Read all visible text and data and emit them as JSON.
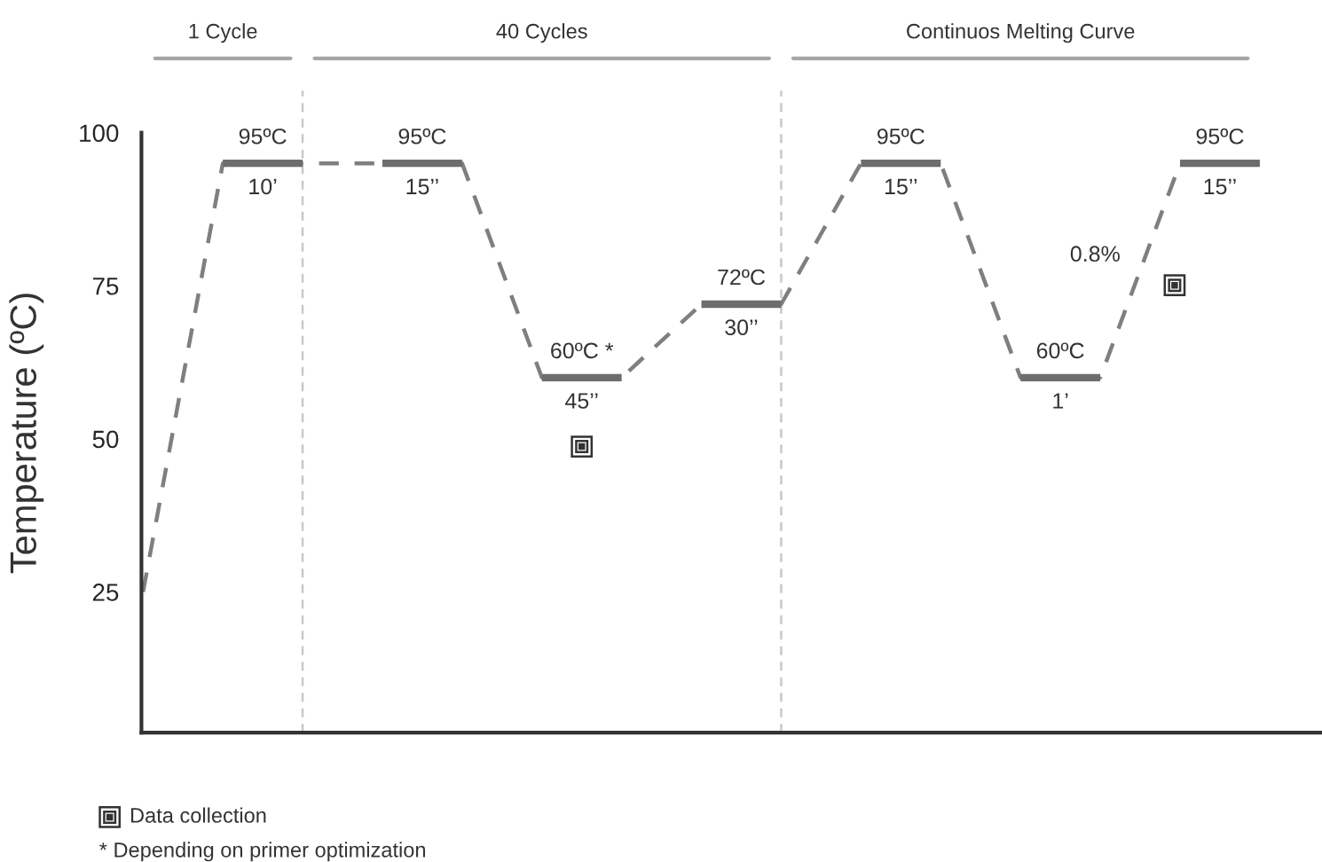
{
  "chart_data": {
    "type": "line",
    "ylabel": "Temperature (ºC)",
    "categories": [
      null,
      null,
      null,
      null,
      null,
      null,
      null,
      null,
      null,
      null,
      null,
      null,
      null,
      null,
      null
    ],
    "ylim": [
      2,
      100
    ],
    "yticks": [
      25,
      50,
      75,
      100
    ],
    "grid": false,
    "legend": false,
    "marker": "none",
    "tick_labels": "y",
    "series": [
      {
        "color": "#7f7f7f",
        "line_style": "dashed",
        "values": [
          25,
          95,
          95,
          95,
          95,
          60,
          60,
          72,
          72,
          95,
          95,
          60,
          60,
          95,
          95
        ]
      },
      {
        "color": "#6d6d6d",
        "line_style": "solid",
        "values": [
          null,
          95,
          95,
          null,
          null,
          null,
          null,
          null,
          null,
          null,
          null,
          null,
          null,
          null,
          null
        ]
      },
      {
        "color": "#6d6d6d",
        "line_style": "solid",
        "values": [
          null,
          null,
          null,
          95,
          95,
          null,
          null,
          null,
          null,
          null,
          null,
          null,
          null,
          null,
          null
        ]
      },
      {
        "color": "#6d6d6d",
        "line_style": "solid",
        "values": [
          null,
          null,
          null,
          null,
          null,
          60,
          60,
          null,
          null,
          null,
          null,
          null,
          null,
          null,
          null
        ]
      },
      {
        "color": "#6d6d6d",
        "line_style": "solid",
        "values": [
          null,
          null,
          null,
          null,
          null,
          null,
          null,
          72,
          72,
          null,
          null,
          null,
          null,
          null,
          null
        ]
      },
      {
        "color": "#6d6d6d",
        "line_style": "solid",
        "values": [
          null,
          null,
          null,
          null,
          null,
          null,
          null,
          null,
          null,
          95,
          95,
          null,
          null,
          null,
          null
        ]
      },
      {
        "color": "#6d6d6d",
        "line_style": "solid",
        "values": [
          null,
          null,
          null,
          null,
          null,
          null,
          null,
          null,
          null,
          null,
          null,
          60,
          60,
          null,
          null
        ]
      },
      {
        "color": "#6d6d6d",
        "line_style": "solid",
        "values": [
          null,
          null,
          null,
          null,
          null,
          null,
          null,
          null,
          null,
          null,
          null,
          null,
          null,
          95,
          95
        ]
      }
    ],
    "annotations": [
      "1 Cycle",
      "40 Cycles",
      "Continuos Melting Curve",
      "95ºC",
      "10’",
      "95ºC",
      "15’’",
      "60ºC *",
      "45’’",
      "72ºC",
      "30’’",
      "95ºC",
      "15’’",
      "60ºC",
      "1’",
      "95ºC",
      "15’’",
      "0.8%",
      "Data collection",
      "* Depending on primer optimization"
    ]
  }
}
